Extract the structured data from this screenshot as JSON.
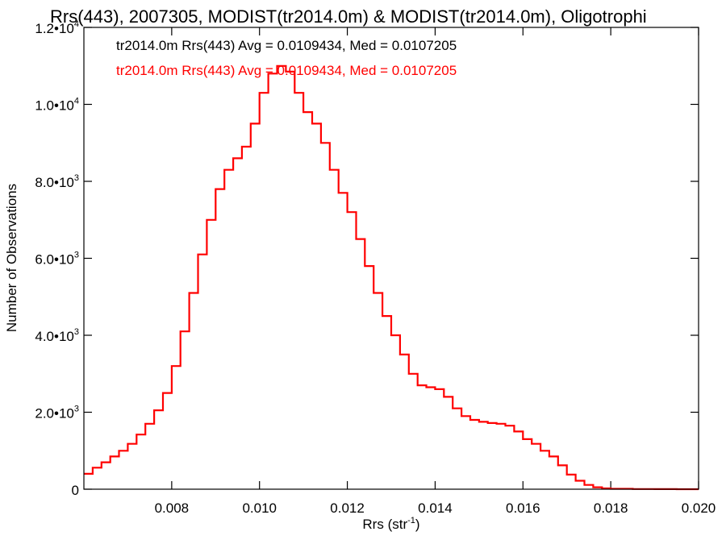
{
  "chart_data": {
    "type": "line",
    "step": true,
    "title": "Rrs(443), 2007305, MODIST(tr2014.0m) & MODIST(tr2014.0m), Oligotrophi",
    "xlabel": "Rrs (str",
    "xlabel_sup": "-1",
    "xlabel_tail": ")",
    "ylabel": "Number of Observations",
    "xlim": [
      0.006,
      0.02
    ],
    "ylim": [
      0,
      12000
    ],
    "x_ticks": [
      {
        "value": 0.008,
        "label": "0.008"
      },
      {
        "value": 0.01,
        "label": "0.010"
      },
      {
        "value": 0.012,
        "label": "0.012"
      },
      {
        "value": 0.014,
        "label": "0.014"
      },
      {
        "value": 0.016,
        "label": "0.016"
      },
      {
        "value": 0.018,
        "label": "0.018"
      },
      {
        "value": 0.02,
        "label": "0.020"
      }
    ],
    "y_ticks": [
      {
        "value": 0,
        "mant": "0",
        "exp": ""
      },
      {
        "value": 2000,
        "mant": "2.0•10",
        "exp": "3"
      },
      {
        "value": 4000,
        "mant": "4.0•10",
        "exp": "3"
      },
      {
        "value": 6000,
        "mant": "6.0•10",
        "exp": "3"
      },
      {
        "value": 8000,
        "mant": "8.0•10",
        "exp": "3"
      },
      {
        "value": 10000,
        "mant": "1.0•10",
        "exp": "4"
      },
      {
        "value": 12000,
        "mant": "1.2•10",
        "exp": "4"
      }
    ],
    "annotations": [
      {
        "text": "tr2014.0m Rrs(443) Avg = 0.0109434, Med = 0.0107205",
        "color": "#000000"
      },
      {
        "text": "tr2014.0m Rrs(443) Avg = 0.0109434, Med = 0.0107205",
        "color": "#ff0000"
      }
    ],
    "series": [
      {
        "color": "#ff0000",
        "x": [
          0.006,
          0.0062,
          0.0064,
          0.0066,
          0.0068,
          0.007,
          0.0072,
          0.0074,
          0.0076,
          0.0078,
          0.008,
          0.0082,
          0.0084,
          0.0086,
          0.0088,
          0.009,
          0.0092,
          0.0094,
          0.0096,
          0.0098,
          0.01,
          0.0102,
          0.0104,
          0.0106,
          0.0108,
          0.011,
          0.0112,
          0.0114,
          0.0116,
          0.0118,
          0.012,
          0.0122,
          0.0124,
          0.0126,
          0.0128,
          0.013,
          0.0132,
          0.0134,
          0.0136,
          0.0138,
          0.014,
          0.0142,
          0.0144,
          0.0146,
          0.0148,
          0.015,
          0.0152,
          0.0154,
          0.0156,
          0.0158,
          0.016,
          0.0162,
          0.0164,
          0.0166,
          0.0168,
          0.017,
          0.0172,
          0.0174,
          0.0176,
          0.0178,
          0.018,
          0.0185,
          0.019,
          0.0195,
          0.02
        ],
        "y": [
          400,
          560,
          700,
          850,
          1000,
          1180,
          1420,
          1700,
          2050,
          2500,
          3200,
          4100,
          5100,
          6100,
          7000,
          7800,
          8300,
          8600,
          8900,
          9500,
          10300,
          10800,
          11000,
          10850,
          10300,
          9800,
          9500,
          9000,
          8300,
          7700,
          7200,
          6500,
          5800,
          5100,
          4500,
          4000,
          3500,
          3000,
          2700,
          2650,
          2600,
          2400,
          2100,
          1900,
          1800,
          1750,
          1720,
          1700,
          1650,
          1500,
          1300,
          1180,
          1000,
          850,
          620,
          380,
          220,
          110,
          50,
          20,
          10,
          5,
          2,
          1,
          0
        ]
      }
    ]
  }
}
